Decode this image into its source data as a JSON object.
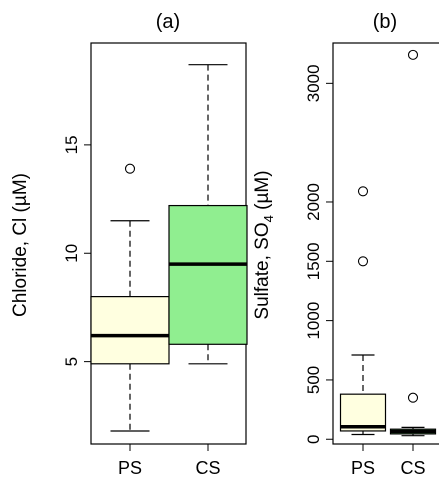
{
  "chart_data": [
    {
      "type": "box",
      "title": "(a)",
      "ylabel": "Chloride, Cl (µM)",
      "categories": [
        "PS",
        "CS"
      ],
      "ylim": [
        1.2,
        19.7
      ],
      "yticks": [
        5,
        10,
        15
      ],
      "colors": [
        "#ffffe0",
        "#90ee90"
      ],
      "boxes": [
        {
          "category": "PS",
          "whisker_low": 1.8,
          "q1": 4.9,
          "median": 6.2,
          "q3": 8.0,
          "whisker_high": 11.5,
          "outliers": [
            13.9
          ]
        },
        {
          "category": "CS",
          "whisker_low": 4.9,
          "q1": 5.8,
          "median": 9.5,
          "q3": 12.2,
          "whisker_high": 18.7,
          "outliers": []
        }
      ]
    },
    {
      "type": "box",
      "title": "(b)",
      "ylabel_main": "Sulfate, SO",
      "ylabel_sub": "4",
      "ylabel_unit": " (µM)",
      "categories": [
        "PS",
        "CS"
      ],
      "ylim": [
        -40,
        3340
      ],
      "yticks": [
        0,
        500,
        1000,
        1500,
        2000,
        3000
      ],
      "colors": [
        "#ffffe0",
        "#90ee90"
      ],
      "boxes": [
        {
          "category": "PS",
          "whisker_low": 40,
          "q1": 70,
          "median": 105,
          "q3": 380,
          "whisker_high": 710,
          "outliers": [
            1500,
            2090
          ]
        },
        {
          "category": "CS",
          "whisker_low": 30,
          "q1": 45,
          "median": 65,
          "q3": 85,
          "whisker_high": 100,
          "outliers": [
            350,
            3240
          ]
        }
      ]
    }
  ]
}
